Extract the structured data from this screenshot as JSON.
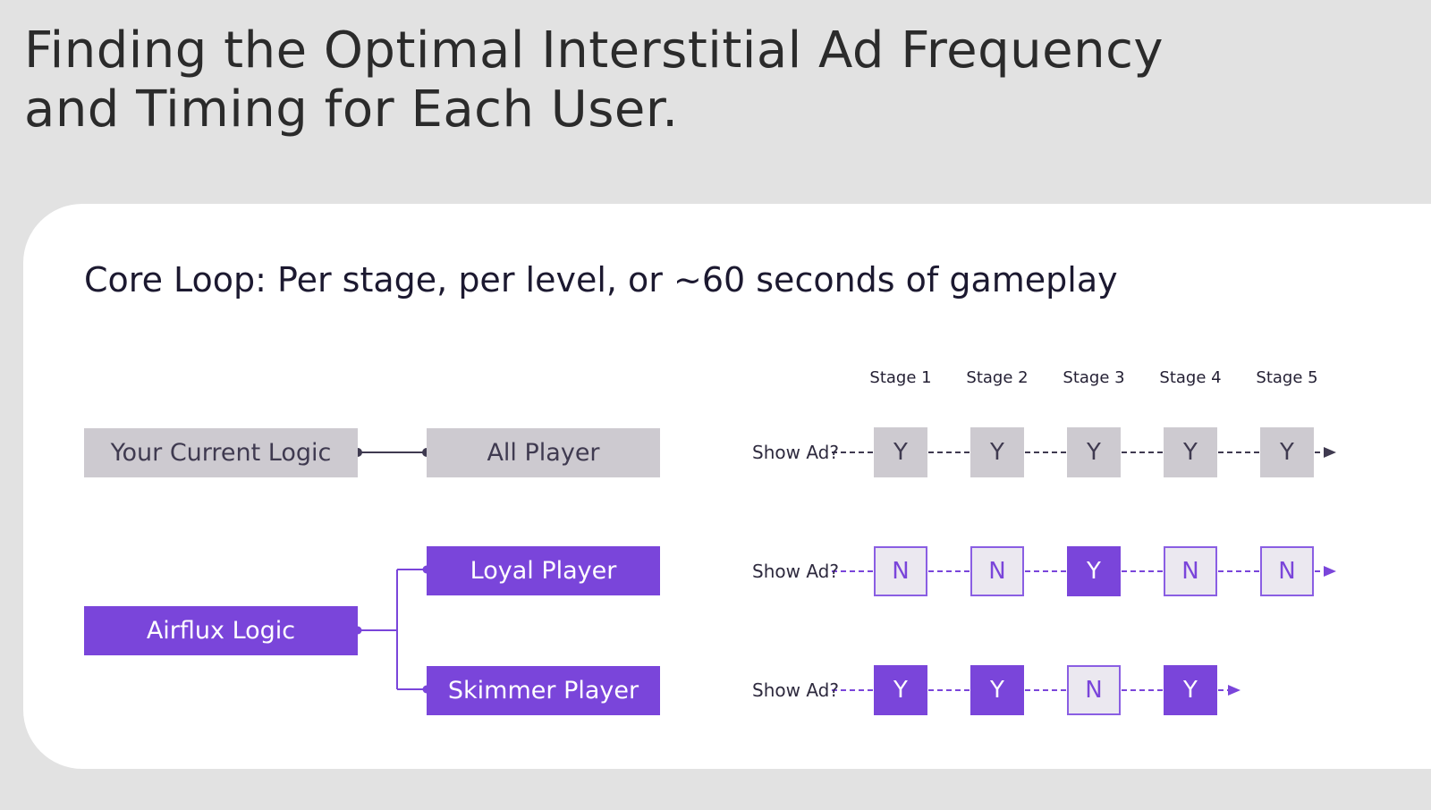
{
  "title": {
    "line1": "Finding the Optimal Interstitial Ad Frequency",
    "line2": "and Timing for Each User."
  },
  "card": {
    "heading": "Core Loop: Per stage, per level, or ~60 seconds of gameplay"
  },
  "stages": [
    "Stage 1",
    "Stage 2",
    "Stage 3",
    "Stage 4",
    "Stage 5"
  ],
  "logic": {
    "current": "Your Current Logic",
    "airflux": "Airflux Logic"
  },
  "rows": [
    {
      "player": "All Player",
      "show_label": "Show Ad?",
      "cells": [
        "Y",
        "Y",
        "Y",
        "Y",
        "Y"
      ]
    },
    {
      "player": "Loyal Player",
      "show_label": "Show Ad?",
      "cells": [
        "N",
        "N",
        "Y",
        "N",
        "N"
      ]
    },
    {
      "player": "Skimmer Player",
      "show_label": "Show Ad?",
      "cells": [
        "Y",
        "Y",
        "N",
        "Y"
      ]
    }
  ],
  "colors": {
    "background": "#e2e2e2",
    "card": "#ffffff",
    "gray_box": "#cdcad0",
    "purple": "#7a45da",
    "no_fill": "#ebe8f0",
    "dark_line": "#3f3a50"
  }
}
